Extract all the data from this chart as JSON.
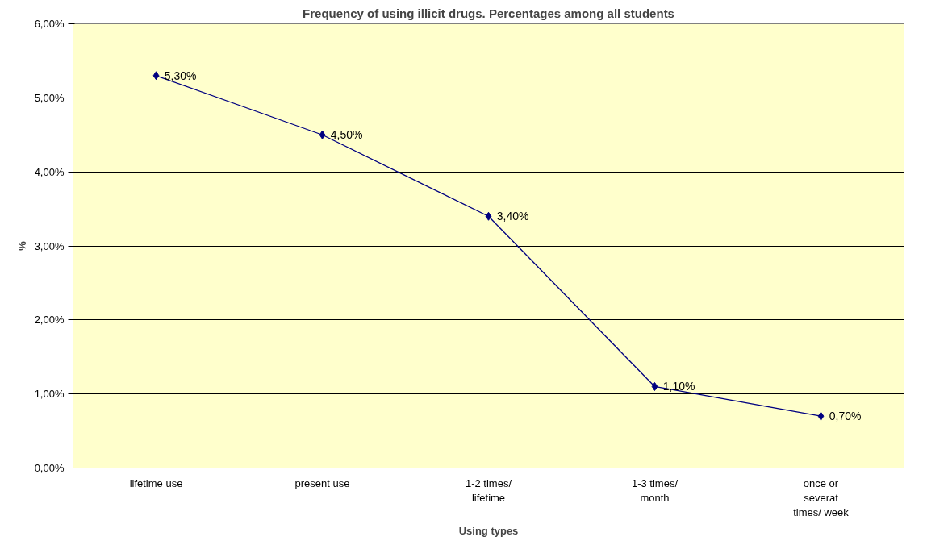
{
  "chart_data": {
    "type": "line",
    "title": "Frequency of using illicit drugs. Percentages among all students",
    "xlabel": "Using types",
    "ylabel": "%",
    "categories": [
      "lifetime use",
      "present use",
      "1-2 times/ lifetime",
      "1-3 times/ month",
      "once or severat times/ week"
    ],
    "series": [
      {
        "color": "#000080",
        "values": [
          5.3,
          4.5,
          3.4,
          1.1,
          0.7
        ],
        "value_labels": [
          "5,30%",
          "4,50%",
          "3,40%",
          "1,10%",
          "0,70%"
        ]
      }
    ],
    "ylim": [
      0,
      6
    ],
    "yticks": [
      {
        "value": 0,
        "label": "0,00%"
      },
      {
        "value": 1,
        "label": "1,00%"
      },
      {
        "value": 2,
        "label": "2,00%"
      },
      {
        "value": 3,
        "label": "3,00%"
      },
      {
        "value": 4,
        "label": "4,00%"
      },
      {
        "value": 5,
        "label": "5,00%"
      },
      {
        "value": 6,
        "label": "6,00%"
      }
    ],
    "grid": "y",
    "marker": "diamond",
    "line_style": "solid"
  }
}
